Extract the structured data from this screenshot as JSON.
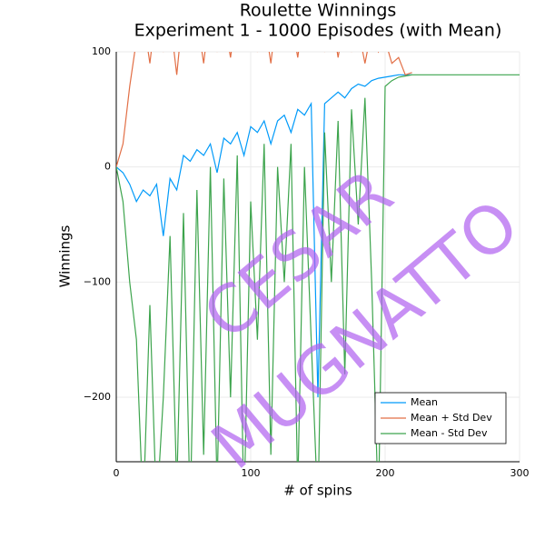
{
  "chart_data": {
    "type": "line",
    "title": "Roulette Winnings",
    "subtitle": "Experiment 1 - 1000 Episodes (with Mean)",
    "x_label": "# of spins",
    "y_label": "Winnings",
    "watermark": [
      "CESAR",
      "MUGNATTO"
    ],
    "watermark_color": "#b060f0",
    "x": [
      0,
      5,
      10,
      15,
      20,
      25,
      30,
      35,
      40,
      45,
      50,
      55,
      60,
      65,
      70,
      75,
      80,
      85,
      90,
      95,
      100,
      105,
      110,
      115,
      120,
      125,
      130,
      135,
      140,
      145,
      150,
      155,
      160,
      165,
      170,
      175,
      180,
      185,
      190,
      195,
      200,
      205,
      210,
      215,
      220,
      225,
      230,
      235,
      240,
      245,
      250,
      255,
      260,
      265,
      270,
      275,
      280,
      285,
      290,
      295,
      300
    ],
    "series": [
      {
        "name": "Mean",
        "color": "#009af9",
        "values": [
          0,
          -5,
          -15,
          -30,
          -20,
          -25,
          -15,
          -60,
          -10,
          -20,
          10,
          5,
          15,
          10,
          20,
          -5,
          25,
          20,
          30,
          10,
          35,
          30,
          40,
          20,
          40,
          45,
          30,
          50,
          45,
          55,
          -200,
          55,
          60,
          65,
          60,
          68,
          72,
          70,
          75,
          77,
          78,
          79,
          80,
          80,
          80,
          null,
          null,
          null,
          null,
          null,
          null,
          null,
          null,
          null,
          null,
          null,
          null,
          null,
          null,
          null,
          null
        ]
      },
      {
        "name": "Mean + Std Dev",
        "color": "#e26f46",
        "values": [
          0,
          20,
          70,
          110,
          130,
          90,
          140,
          100,
          130,
          80,
          140,
          110,
          130,
          90,
          140,
          100,
          130,
          95,
          140,
          110,
          140,
          100,
          130,
          90,
          140,
          105,
          130,
          95,
          140,
          110,
          130,
          100,
          135,
          95,
          130,
          100,
          120,
          90,
          120,
          100,
          110,
          90,
          95,
          80,
          82,
          null,
          null,
          null,
          null,
          null,
          null,
          null,
          null,
          null,
          null,
          null,
          null,
          null,
          null,
          null,
          null
        ]
      },
      {
        "name": "Mean - Std Dev",
        "color": "#3da44d",
        "values": [
          0,
          -30,
          -100,
          -150,
          -300,
          -120,
          -300,
          -200,
          -60,
          -280,
          -40,
          -300,
          -20,
          -250,
          0,
          -280,
          -10,
          -200,
          10,
          -300,
          -30,
          -150,
          20,
          -250,
          0,
          -100,
          20,
          -280,
          0,
          -150,
          -300,
          30,
          -100,
          40,
          -180,
          50,
          -50,
          60,
          -100,
          -300,
          70,
          75,
          78,
          79,
          80,
          80,
          80,
          80,
          80,
          80,
          80,
          80,
          80,
          80,
          80,
          80,
          80,
          80,
          80,
          80,
          80
        ]
      }
    ],
    "xlim": [
      0,
      300
    ],
    "xticks": [
      0,
      100,
      200,
      300
    ],
    "ylim": [
      -256,
      100
    ],
    "yticks": [
      {
        "value": -200,
        "label": "−200"
      },
      {
        "value": -100,
        "label": "−100"
      },
      0,
      100
    ],
    "grid": true,
    "legend": "bottom-right"
  }
}
